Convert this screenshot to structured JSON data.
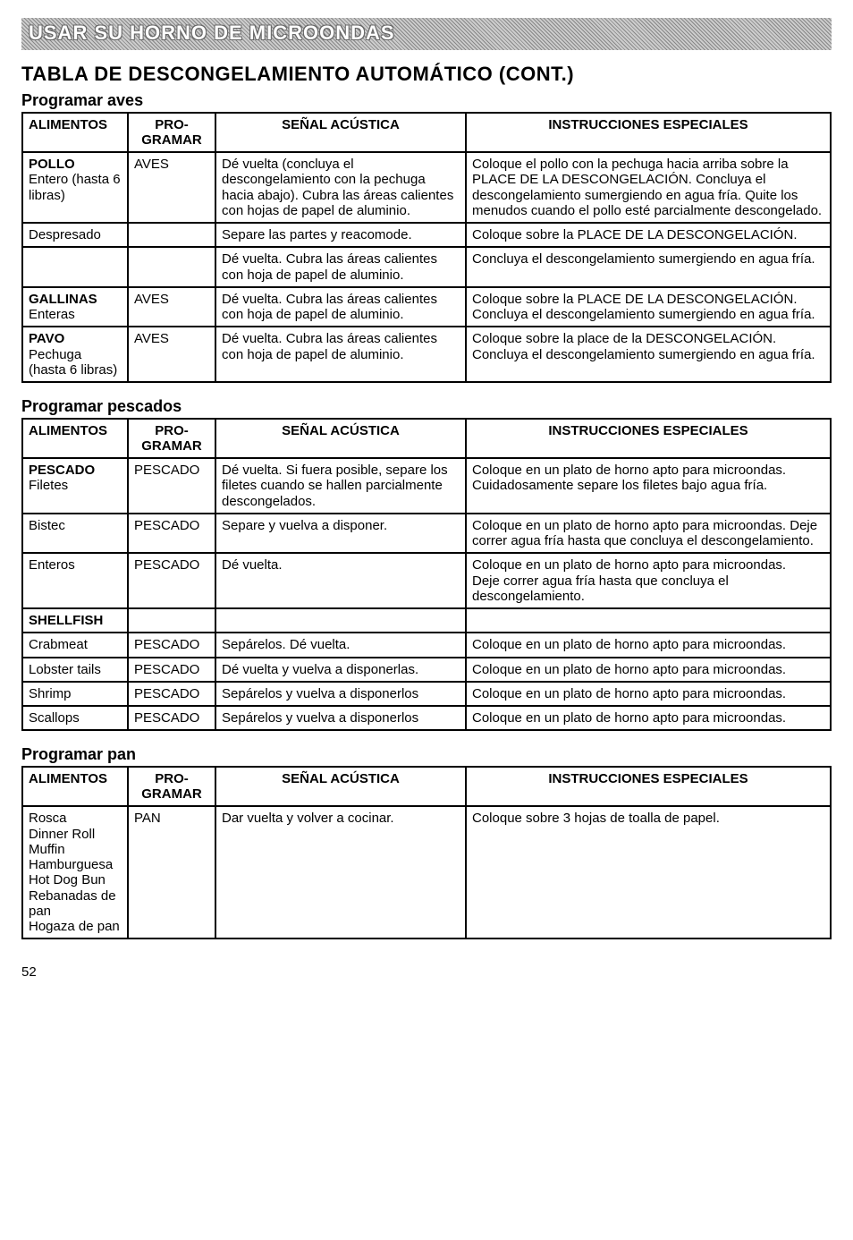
{
  "banner": "USAR SU HORNO DE MICROONDAS",
  "title": "TABLA DE DESCONGELAMIENTO AUTOMÁTICO (CONT.)",
  "page_number": "52",
  "columns": {
    "food": "ALIMENTOS",
    "program": "PRO-\nGRAMAR",
    "signal": "SEÑAL ACÚSTICA",
    "instructions": "INSTRUCCIONES  ESPECIALES"
  },
  "sections": [
    {
      "heading": "Programar aves",
      "groups": [
        {
          "rows": [
            {
              "food_bold": "POLLO",
              "food_plain": "Entero (hasta 6 libras)",
              "program": "AVES",
              "signal": "Dé vuelta (concluya el descongelamiento con la pechuga hacia abajo). Cubra las áreas calientes con hojas de papel de aluminio.",
              "instructions": "Coloque el pollo con la pechuga hacia arriba sobre la PLACE DE LA DESCONGELACIÓN. Concluya el descongelamiento sumergiendo en agua fría. Quite los menudos cuando el pollo esté parcialmente descongelado."
            },
            {
              "food_bold": "",
              "food_plain": "Despresado",
              "program": "",
              "signal": "Separe las partes y reacomode.",
              "instructions": "Coloque sobre la PLACE DE LA DESCONGELACIÓN."
            },
            {
              "food_bold": "",
              "food_plain": "",
              "program": "",
              "signal": "Dé vuelta. Cubra las áreas calientes con hoja de papel de aluminio.",
              "instructions": "Concluya el descongelamiento sumergiendo en agua fría."
            }
          ]
        },
        {
          "rows": [
            {
              "food_bold": "GALLINAS",
              "food_plain": "Enteras",
              "program": "AVES",
              "signal": "Dé vuelta. Cubra las áreas calientes con hoja de papel de aluminio.",
              "instructions": "Coloque sobre la PLACE DE LA DESCONGELACIÓN. Concluya el descongelamiento sumergiendo en agua fría."
            }
          ]
        },
        {
          "rows": [
            {
              "food_bold": "PAVO",
              "food_plain": "Pechuga (hasta 6 libras)",
              "program": "AVES",
              "signal": "Dé vuelta. Cubra las áreas calientes con hoja de papel de aluminio.",
              "instructions": "Coloque sobre la place de la DESCONGELACIÓN. Concluya el descongelamiento sumergiendo en agua fría."
            }
          ]
        }
      ]
    },
    {
      "heading": "Programar pescados",
      "groups": [
        {
          "rows": [
            {
              "food_bold": "PESCADO",
              "food_plain": "Filetes",
              "program": "PESCADO",
              "signal": "Dé vuelta. Si fuera posible, separe los filetes cuando se hallen parcialmente descongelados.",
              "instructions": "Coloque en un plato de horno apto para microondas. Cuidadosamente separe los filetes bajo agua fría."
            },
            {
              "food_bold": "",
              "food_plain": "Bistec",
              "program": "PESCADO",
              "signal": "Separe y vuelva a disponer.",
              "instructions": "Coloque en un plato de horno apto para microondas. Deje correr agua fría hasta que concluya el descongelamiento."
            },
            {
              "food_bold": "",
              "food_plain": "Enteros",
              "program": "PESCADO",
              "signal": "Dé vuelta.",
              "instructions": "Coloque en un plato de horno apto para microondas.\nDeje correr agua fría hasta que concluya el descongelamiento."
            }
          ]
        },
        {
          "rows": [
            {
              "food_bold": "SHELLFISH",
              "food_plain": "",
              "program": "",
              "signal": "",
              "instructions": ""
            },
            {
              "food_bold": "",
              "food_plain": "Crabmeat",
              "program": "PESCADO",
              "signal": "Sepárelos. Dé vuelta.",
              "instructions": "Coloque en un plato de horno apto para microondas."
            },
            {
              "food_bold": "",
              "food_plain": "Lobster tails",
              "program": "PESCADO",
              "signal": "Dé vuelta y vuelva a disponerlas.",
              "instructions": "Coloque en un plato de horno apto para microondas."
            },
            {
              "food_bold": "",
              "food_plain": "Shrimp",
              "program": "PESCADO",
              "signal": "Sepárelos y vuelva a disponerlos",
              "instructions": "Coloque en un plato de horno apto para microondas."
            },
            {
              "food_bold": "",
              "food_plain": "Scallops",
              "program": "PESCADO",
              "signal": "Sepárelos y vuelva a disponerlos",
              "instructions": "Coloque en un plato de horno apto para microondas."
            }
          ]
        }
      ]
    },
    {
      "heading": "Programar pan",
      "groups": [
        {
          "rows": [
            {
              "food_bold": "",
              "food_plain": "Rosca\nDinner Roll\nMuffin\nHamburguesa\nHot Dog Bun\nRebanadas de pan\nHogaza de pan",
              "program": "PAN",
              "signal": "Dar vuelta y volver a cocinar.",
              "instructions": "Coloque sobre 3 hojas de toalla de papel."
            }
          ]
        }
      ]
    }
  ]
}
